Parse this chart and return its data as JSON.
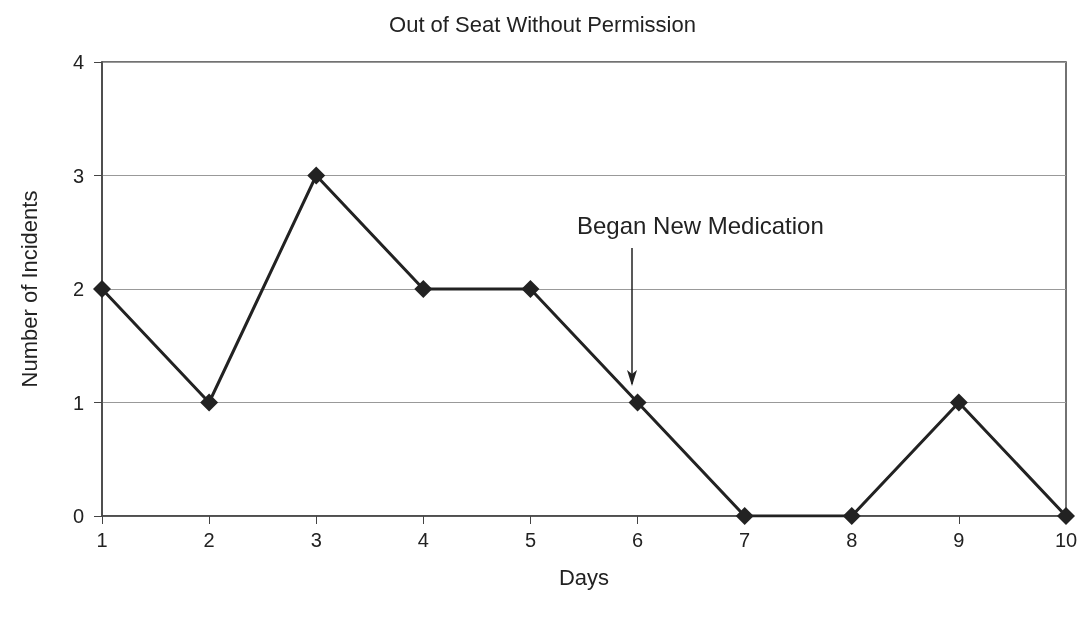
{
  "chart_data": {
    "type": "line",
    "title": "Out of Seat Without Permission",
    "xlabel": "Days",
    "ylabel": "Number of Incidents",
    "x": [
      1,
      2,
      3,
      4,
      5,
      6,
      7,
      8,
      9,
      10
    ],
    "series": [
      {
        "color": "#222222",
        "values": [
          2,
          1,
          3,
          2,
          2,
          1,
          0,
          0,
          1,
          0
        ]
      }
    ],
    "xlim": [
      1,
      10
    ],
    "xticks": [
      1,
      2,
      3,
      4,
      5,
      6,
      7,
      8,
      9,
      10
    ],
    "ylim": [
      0,
      4
    ],
    "yticks": [
      0,
      1,
      2,
      3,
      4
    ],
    "grid": "y",
    "marker": "diamond",
    "line_style": "solid",
    "annotations": [
      "Began New Medication"
    ]
  }
}
